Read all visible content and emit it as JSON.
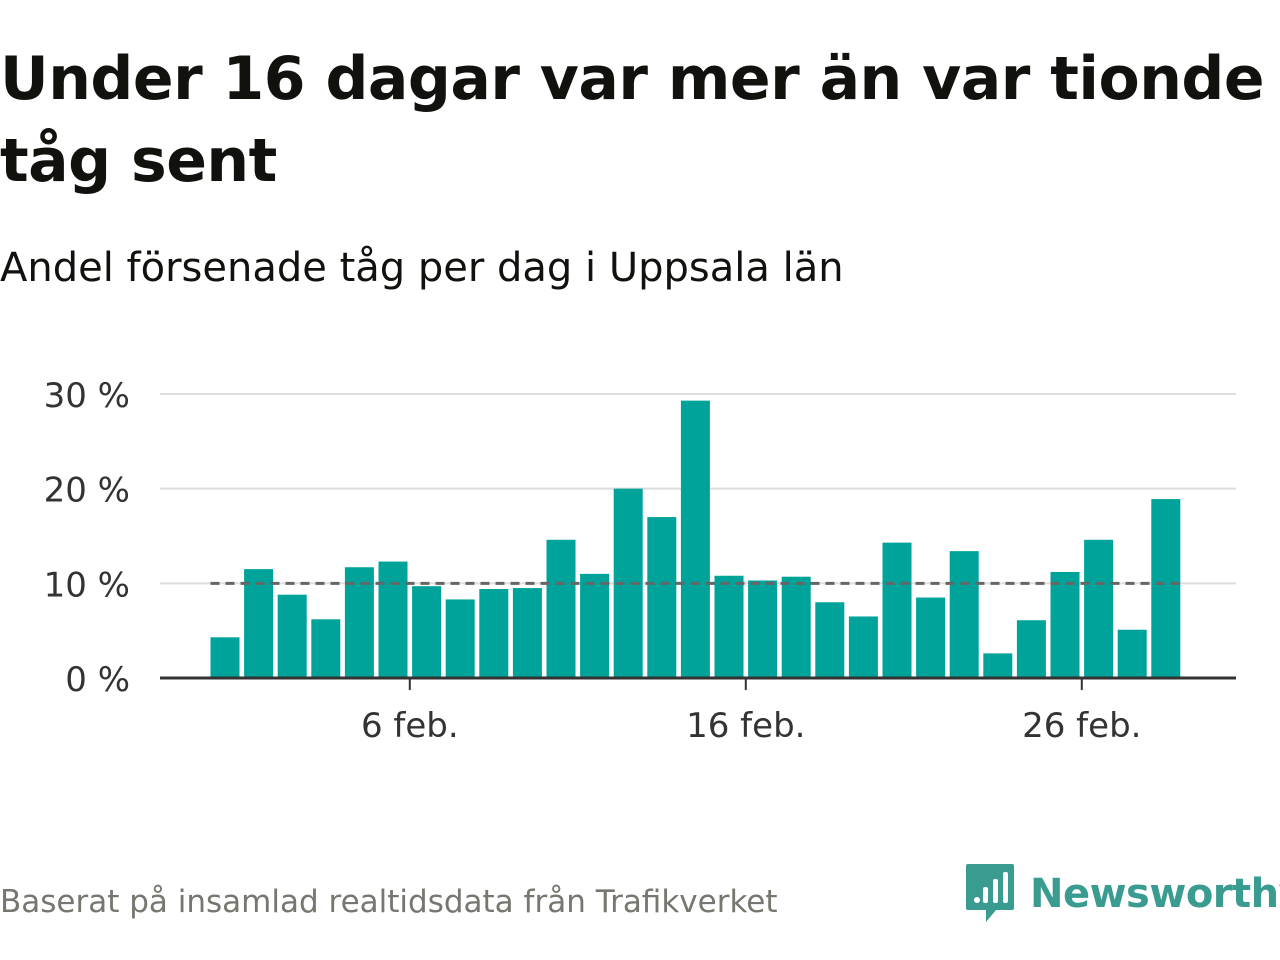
{
  "header": {
    "title": "Under 16 dagar var mer än var tionde tåg sent",
    "subtitle": "Andel försenade tåg per dag i Uppsala län"
  },
  "footer": {
    "source": "Baserat på insamlad realtidsdata från Trafikverket",
    "brand": "Newsworthy"
  },
  "colors": {
    "bar": "#00a39a",
    "reference_line": "#666666",
    "grid": "#dddddd",
    "axis": "#333333",
    "brand": "#3a9c90"
  },
  "chart_data": {
    "type": "bar",
    "x": [
      "2020-02-01",
      "2020-02-02",
      "2020-02-03",
      "2020-02-04",
      "2020-02-05",
      "2020-02-06",
      "2020-02-07",
      "2020-02-08",
      "2020-02-09",
      "2020-02-10",
      "2020-02-11",
      "2020-02-12",
      "2020-02-13",
      "2020-02-14",
      "2020-02-15",
      "2020-02-16",
      "2020-02-17",
      "2020-02-18",
      "2020-02-19",
      "2020-02-20",
      "2020-02-21",
      "2020-02-22",
      "2020-02-23",
      "2020-02-24",
      "2020-02-25",
      "2020-02-26",
      "2020-02-27",
      "2020-02-28",
      "2020-02-29"
    ],
    "values": [
      4.3,
      11.5,
      8.8,
      6.2,
      11.7,
      12.3,
      9.7,
      8.3,
      9.4,
      9.5,
      14.6,
      11.0,
      20.0,
      17.0,
      29.3,
      10.8,
      10.3,
      10.7,
      8.0,
      6.5,
      14.3,
      8.5,
      13.4,
      2.6,
      6.1,
      11.2,
      14.6,
      5.1,
      18.9
    ],
    "reference_value": 10,
    "x_tick_labels": [
      "6 feb.",
      "16 feb.",
      "26 feb."
    ],
    "x_tick_dates": [
      "2020-02-06",
      "2020-02-16",
      "2020-02-26"
    ],
    "y_tick_labels": [
      "0 %",
      "10 %",
      "20 %",
      "30 %"
    ],
    "y_ticks": [
      0,
      10,
      20,
      30
    ],
    "ylim": [
      0,
      30
    ],
    "xlabel": "",
    "ylabel": "",
    "grid": true,
    "legend": false
  }
}
